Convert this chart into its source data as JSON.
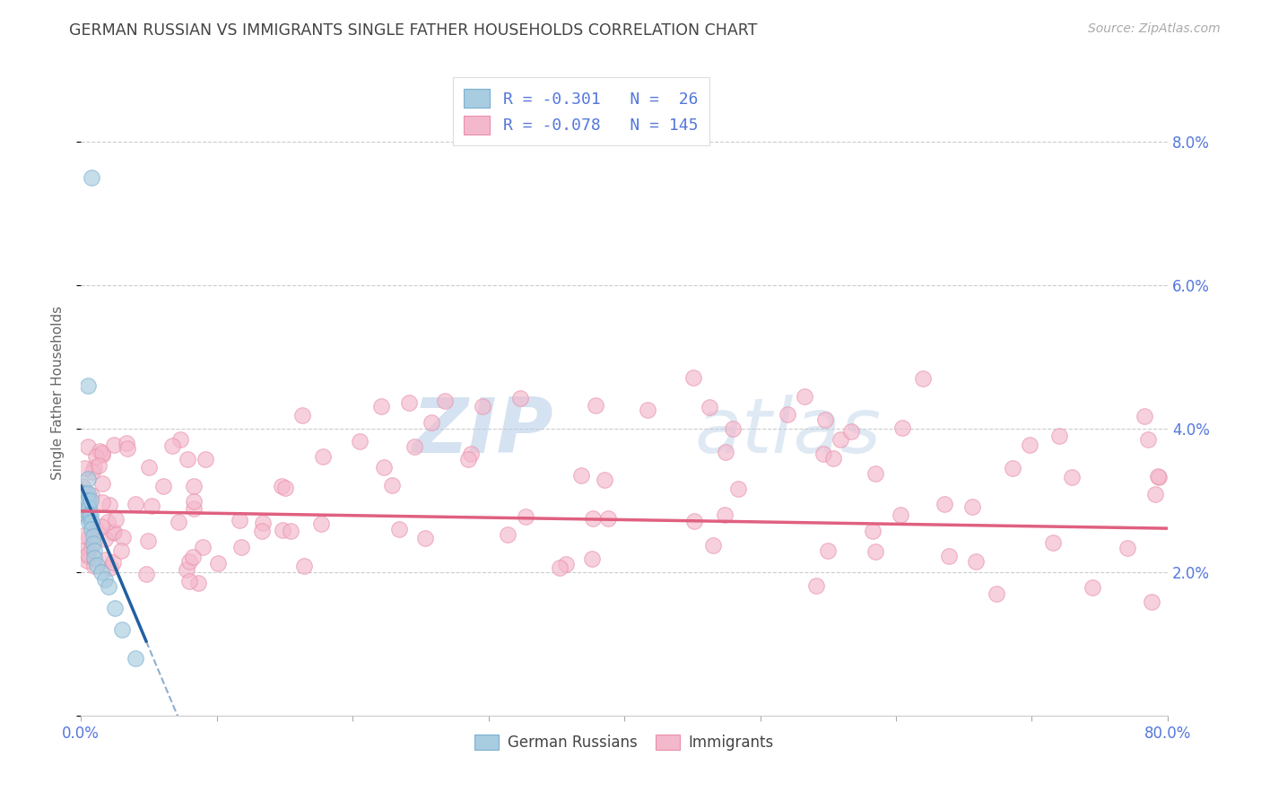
{
  "title": "GERMAN RUSSIAN VS IMMIGRANTS SINGLE FATHER HOUSEHOLDS CORRELATION CHART",
  "source": "Source: ZipAtlas.com",
  "ylabel": "Single Father Households",
  "x_min": 0.0,
  "x_max": 0.8,
  "y_min": 0.0,
  "y_max": 0.09,
  "x_ticks": [
    0.0,
    0.1,
    0.2,
    0.3,
    0.4,
    0.5,
    0.6,
    0.7,
    0.8
  ],
  "x_tick_labels_show": [
    "0.0%",
    "",
    "",
    "",
    "",
    "",
    "",
    "",
    "80.0%"
  ],
  "y_ticks": [
    0.0,
    0.02,
    0.04,
    0.06,
    0.08
  ],
  "y_tick_labels": [
    "",
    "2.0%",
    "4.0%",
    "6.0%",
    "8.0%"
  ],
  "color_blue_fill": "#a8cce0",
  "color_blue_edge": "#7bb0d0",
  "color_blue_line": "#2060a0",
  "color_pink_fill": "#f4b8cc",
  "color_pink_edge": "#e890a8",
  "color_pink_line": "#e06080",
  "color_tick_label": "#5577dd",
  "grid_color": "#cccccc",
  "watermark_zip": "ZIP",
  "watermark_atlas": "atlas",
  "legend_label1": "R = -0.301   N =  26",
  "legend_label2": "R = -0.078   N = 145",
  "title_color": "#444444",
  "source_color": "#aaaaaa",
  "ylabel_color": "#666666"
}
